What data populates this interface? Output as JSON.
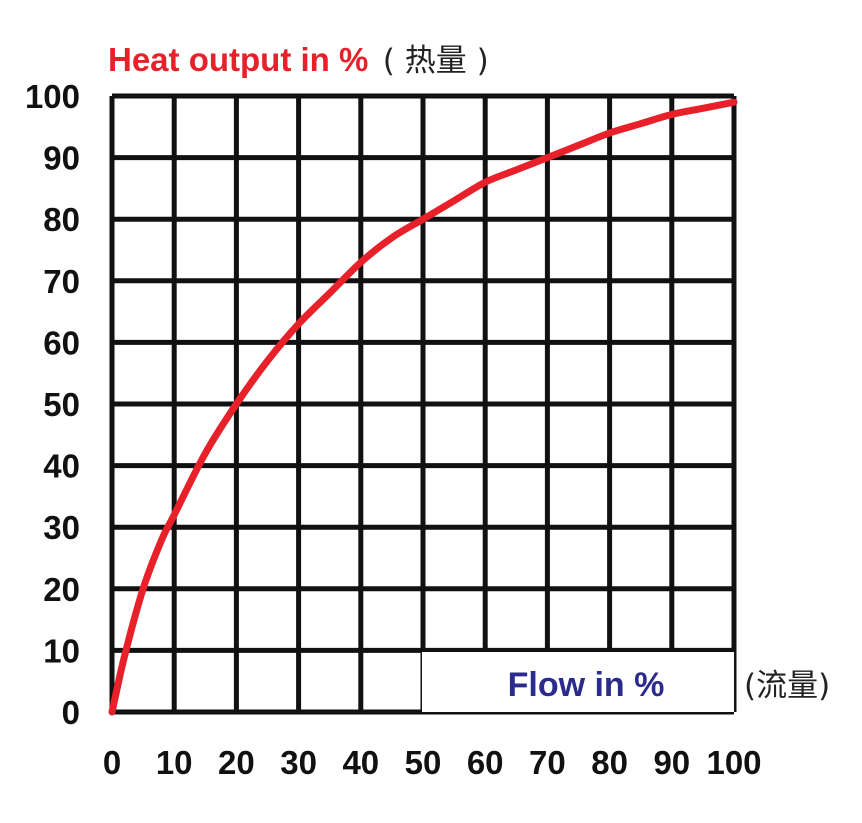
{
  "chart_data": {
    "type": "line",
    "title": "",
    "ylabel": "Heat output in %",
    "ylabel_secondary": "( 热量 )",
    "xlabel": "Flow in %",
    "xlabel_secondary": "(流量)",
    "xlim": [
      0,
      100
    ],
    "ylim": [
      0,
      100
    ],
    "x_ticks": [
      "0",
      "10",
      "20",
      "30",
      "40",
      "50",
      "60",
      "70",
      "80",
      "90",
      "100"
    ],
    "y_ticks": [
      "0",
      "10",
      "20",
      "30",
      "40",
      "50",
      "60",
      "70",
      "80",
      "90",
      "100"
    ],
    "grid": true,
    "series": [
      {
        "color": "#e8202a",
        "x": [
          0,
          2,
          5,
          8,
          10,
          15,
          20,
          25,
          30,
          35,
          40,
          45,
          50,
          55,
          60,
          65,
          70,
          75,
          80,
          85,
          90,
          95,
          100
        ],
        "y": [
          0,
          9,
          20,
          28,
          32,
          42,
          50,
          57,
          63,
          68,
          73,
          77,
          80,
          83,
          86,
          88,
          90,
          92,
          94,
          95.5,
          97,
          98,
          99
        ]
      }
    ]
  },
  "colors": {
    "ylabel": "#e8202a",
    "xlabel": "#2b2b8c",
    "grid": "#111111",
    "curve": "#e8202a"
  }
}
